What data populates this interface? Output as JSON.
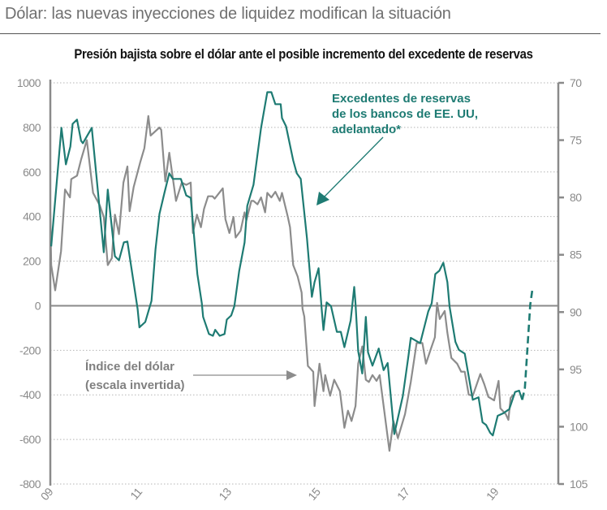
{
  "header": {
    "title": "Dólar: las nuevas inyecciones de liquidez modifican la situación"
  },
  "chart_data": {
    "type": "line",
    "title": "Presión bajista sobre el dólar ante el posible incremento del excedente de reservas",
    "xlabel": "",
    "x_ticks": [
      "09",
      "11",
      "13",
      "15",
      "17",
      "19"
    ],
    "xlim": [
      2009,
      2020.4
    ],
    "left_axis": {
      "ylim": [
        -800,
        1000
      ],
      "ticks": [
        "1000",
        "800",
        "600",
        "400",
        "200",
        "0",
        "-200",
        "-400",
        "-600",
        "-800"
      ]
    },
    "right_axis": {
      "ylim": [
        70,
        105
      ],
      "inverted": true,
      "ticks": [
        "70",
        "75",
        "80",
        "85",
        "90",
        "95",
        "100",
        "105"
      ]
    },
    "grid": "horizontal-dotted",
    "colors": {
      "reserves": "#1e7b73",
      "dollar": "#8c8c8c"
    },
    "annotations": {
      "reserves": [
        "Excedentes de reservas",
        "de los bancos de EE. UU,",
        "adelantado*"
      ],
      "dollar": [
        "Índice del dólar",
        "(escala invertida)"
      ]
    },
    "series": [
      {
        "name": "Excedentes de reservas de los bancos de EE. UU, adelantado*",
        "axis": "left",
        "points": [
          [
            2009.02,
            266
          ],
          [
            2009.25,
            798
          ],
          [
            2009.35,
            634
          ],
          [
            2009.45,
            714
          ],
          [
            2009.5,
            816
          ],
          [
            2009.6,
            835
          ],
          [
            2009.69,
            740
          ],
          [
            2009.73,
            729
          ],
          [
            2009.93,
            798
          ],
          [
            2010.2,
            240
          ],
          [
            2010.29,
            521
          ],
          [
            2010.45,
            222
          ],
          [
            2010.54,
            204
          ],
          [
            2010.65,
            284
          ],
          [
            2010.73,
            288
          ],
          [
            2010.96,
            -15
          ],
          [
            2011.0,
            -97
          ],
          [
            2011.13,
            -73
          ],
          [
            2011.27,
            22
          ],
          [
            2011.36,
            252
          ],
          [
            2011.45,
            412
          ],
          [
            2011.56,
            506
          ],
          [
            2011.67,
            594
          ],
          [
            2011.75,
            569
          ],
          [
            2011.93,
            569
          ],
          [
            2012.05,
            495
          ],
          [
            2012.15,
            484
          ],
          [
            2012.3,
            142
          ],
          [
            2012.4,
            11
          ],
          [
            2012.43,
            -50
          ],
          [
            2012.56,
            -127
          ],
          [
            2012.65,
            -135
          ],
          [
            2012.7,
            -108
          ],
          [
            2012.8,
            -135
          ],
          [
            2012.91,
            -127
          ],
          [
            2012.96,
            -62
          ],
          [
            2013.06,
            -44
          ],
          [
            2013.13,
            -2
          ],
          [
            2013.24,
            157
          ],
          [
            2013.36,
            284
          ],
          [
            2013.42,
            448
          ],
          [
            2013.56,
            543
          ],
          [
            2013.65,
            678
          ],
          [
            2013.73,
            798
          ],
          [
            2013.87,
            958
          ],
          [
            2013.96,
            958
          ],
          [
            2014.05,
            904
          ],
          [
            2014.17,
            904
          ],
          [
            2014.2,
            842
          ],
          [
            2014.29,
            805
          ],
          [
            2014.45,
            652
          ],
          [
            2014.53,
            594
          ],
          [
            2014.62,
            569
          ],
          [
            2014.76,
            302
          ],
          [
            2014.87,
            40
          ],
          [
            2014.93,
            106
          ],
          [
            2015.02,
            168
          ],
          [
            2015.09,
            -15
          ],
          [
            2015.13,
            -109
          ],
          [
            2015.2,
            15
          ],
          [
            2015.3,
            -2
          ],
          [
            2015.43,
            -117
          ],
          [
            2015.52,
            -117
          ],
          [
            2015.6,
            -186
          ],
          [
            2015.74,
            -67
          ],
          [
            2015.82,
            84
          ],
          [
            2015.85,
            10
          ],
          [
            2015.91,
            -204
          ],
          [
            2016.0,
            -304
          ],
          [
            2016.08,
            -50
          ],
          [
            2016.13,
            -209
          ],
          [
            2016.23,
            -269
          ],
          [
            2016.37,
            -192
          ],
          [
            2016.48,
            -289
          ],
          [
            2016.57,
            -257
          ],
          [
            2016.72,
            -576
          ],
          [
            2016.91,
            -405
          ],
          [
            2017.04,
            -221
          ],
          [
            2017.09,
            -144
          ],
          [
            2017.3,
            -168
          ],
          [
            2017.48,
            -26
          ],
          [
            2017.56,
            11
          ],
          [
            2017.64,
            142
          ],
          [
            2017.73,
            157
          ],
          [
            2017.82,
            193
          ],
          [
            2017.91,
            106
          ],
          [
            2017.96,
            -4
          ],
          [
            2018.09,
            -162
          ],
          [
            2018.17,
            -198
          ],
          [
            2018.3,
            -215
          ],
          [
            2018.48,
            -422
          ],
          [
            2018.61,
            -411
          ],
          [
            2018.7,
            -523
          ],
          [
            2018.78,
            -535
          ],
          [
            2018.87,
            -570
          ],
          [
            2018.93,
            -582
          ],
          [
            2019.04,
            -494
          ],
          [
            2019.17,
            -482
          ],
          [
            2019.3,
            -464
          ],
          [
            2019.43,
            -387
          ],
          [
            2019.52,
            -381
          ],
          [
            2019.59,
            -422
          ]
        ],
        "forecast_points": [
          [
            2019.59,
            -422
          ],
          [
            2019.65,
            -369
          ],
          [
            2019.77,
            4
          ],
          [
            2019.82,
            77
          ]
        ]
      },
      {
        "name": "Índice del dólar (escala invertida)",
        "axis": "right",
        "points": [
          [
            2009.0,
            81.3
          ],
          [
            2009.02,
            85.9
          ],
          [
            2009.11,
            88.1
          ],
          [
            2009.24,
            84.7
          ],
          [
            2009.33,
            79.3
          ],
          [
            2009.44,
            80.0
          ],
          [
            2009.47,
            78.4
          ],
          [
            2009.6,
            78.1
          ],
          [
            2009.69,
            76.7
          ],
          [
            2009.82,
            75.0
          ],
          [
            2009.96,
            79.6
          ],
          [
            2010.11,
            80.7
          ],
          [
            2010.2,
            81.7
          ],
          [
            2010.29,
            85.9
          ],
          [
            2010.38,
            85.3
          ],
          [
            2010.45,
            81.5
          ],
          [
            2010.54,
            83.2
          ],
          [
            2010.64,
            78.7
          ],
          [
            2010.73,
            77.3
          ],
          [
            2010.78,
            81.2
          ],
          [
            2010.87,
            79.1
          ],
          [
            2011.02,
            76.9
          ],
          [
            2011.11,
            75.7
          ],
          [
            2011.2,
            72.9
          ],
          [
            2011.25,
            74.6
          ],
          [
            2011.45,
            73.9
          ],
          [
            2011.49,
            74.1
          ],
          [
            2011.58,
            78.6
          ],
          [
            2011.67,
            76.1
          ],
          [
            2011.82,
            80.3
          ],
          [
            2011.95,
            78.7
          ],
          [
            2012.05,
            78.9
          ],
          [
            2012.15,
            78.7
          ],
          [
            2012.2,
            83.1
          ],
          [
            2012.29,
            81.5
          ],
          [
            2012.38,
            82.6
          ],
          [
            2012.45,
            81.0
          ],
          [
            2012.54,
            79.9
          ],
          [
            2012.64,
            79.9
          ],
          [
            2012.69,
            80.1
          ],
          [
            2012.87,
            79.2
          ],
          [
            2012.93,
            81.9
          ],
          [
            2013.02,
            83.1
          ],
          [
            2013.11,
            81.7
          ],
          [
            2013.16,
            83.5
          ],
          [
            2013.27,
            82.9
          ],
          [
            2013.36,
            81.3
          ],
          [
            2013.4,
            82.0
          ],
          [
            2013.51,
            80.3
          ],
          [
            2013.56,
            80.3
          ],
          [
            2013.65,
            80.6
          ],
          [
            2013.73,
            80.0
          ],
          [
            2013.82,
            81.3
          ],
          [
            2013.87,
            79.6
          ],
          [
            2013.96,
            80.0
          ],
          [
            2014.05,
            79.5
          ],
          [
            2014.15,
            80.3
          ],
          [
            2014.2,
            79.6
          ],
          [
            2014.33,
            81.7
          ],
          [
            2014.38,
            82.6
          ],
          [
            2014.45,
            85.9
          ],
          [
            2014.55,
            86.9
          ],
          [
            2014.64,
            88.3
          ],
          [
            2014.66,
            89.7
          ],
          [
            2014.7,
            90.4
          ],
          [
            2014.78,
            94.7
          ],
          [
            2014.9,
            95.2
          ],
          [
            2014.93,
            98.2
          ],
          [
            2015.04,
            94.5
          ],
          [
            2015.13,
            96.9
          ],
          [
            2015.17,
            95.5
          ],
          [
            2015.28,
            97.3
          ],
          [
            2015.37,
            95.9
          ],
          [
            2015.5,
            96.9
          ],
          [
            2015.6,
            100.1
          ],
          [
            2015.68,
            98.6
          ],
          [
            2015.76,
            99.5
          ],
          [
            2015.85,
            98.2
          ],
          [
            2015.91,
            94.5
          ],
          [
            2016.0,
            93.0
          ],
          [
            2016.08,
            95.9
          ],
          [
            2016.15,
            96.1
          ],
          [
            2016.23,
            95.5
          ],
          [
            2016.32,
            96.0
          ],
          [
            2016.39,
            95.5
          ],
          [
            2016.61,
            102.1
          ],
          [
            2016.7,
            99.5
          ],
          [
            2016.8,
            101.0
          ],
          [
            2016.96,
            98.9
          ],
          [
            2017.09,
            96.1
          ],
          [
            2017.22,
            92.7
          ],
          [
            2017.35,
            92.7
          ],
          [
            2017.43,
            94.5
          ],
          [
            2017.54,
            93.2
          ],
          [
            2017.63,
            92.2
          ],
          [
            2017.68,
            89.2
          ],
          [
            2017.74,
            90.6
          ],
          [
            2017.85,
            89.9
          ],
          [
            2017.91,
            91.8
          ],
          [
            2018.0,
            94.0
          ],
          [
            2018.13,
            94.5
          ],
          [
            2018.22,
            95.2
          ],
          [
            2018.3,
            95.2
          ],
          [
            2018.39,
            97.2
          ],
          [
            2018.48,
            97.3
          ],
          [
            2018.65,
            95.4
          ],
          [
            2018.74,
            96.3
          ],
          [
            2018.83,
            97.4
          ],
          [
            2018.96,
            97.7
          ],
          [
            2019.06,
            96.0
          ],
          [
            2019.1,
            98.4
          ],
          [
            2019.22,
            98.9
          ],
          [
            2019.28,
            99.4
          ],
          [
            2019.33,
            97.5
          ],
          [
            2019.39,
            97.2
          ]
        ]
      }
    ]
  }
}
